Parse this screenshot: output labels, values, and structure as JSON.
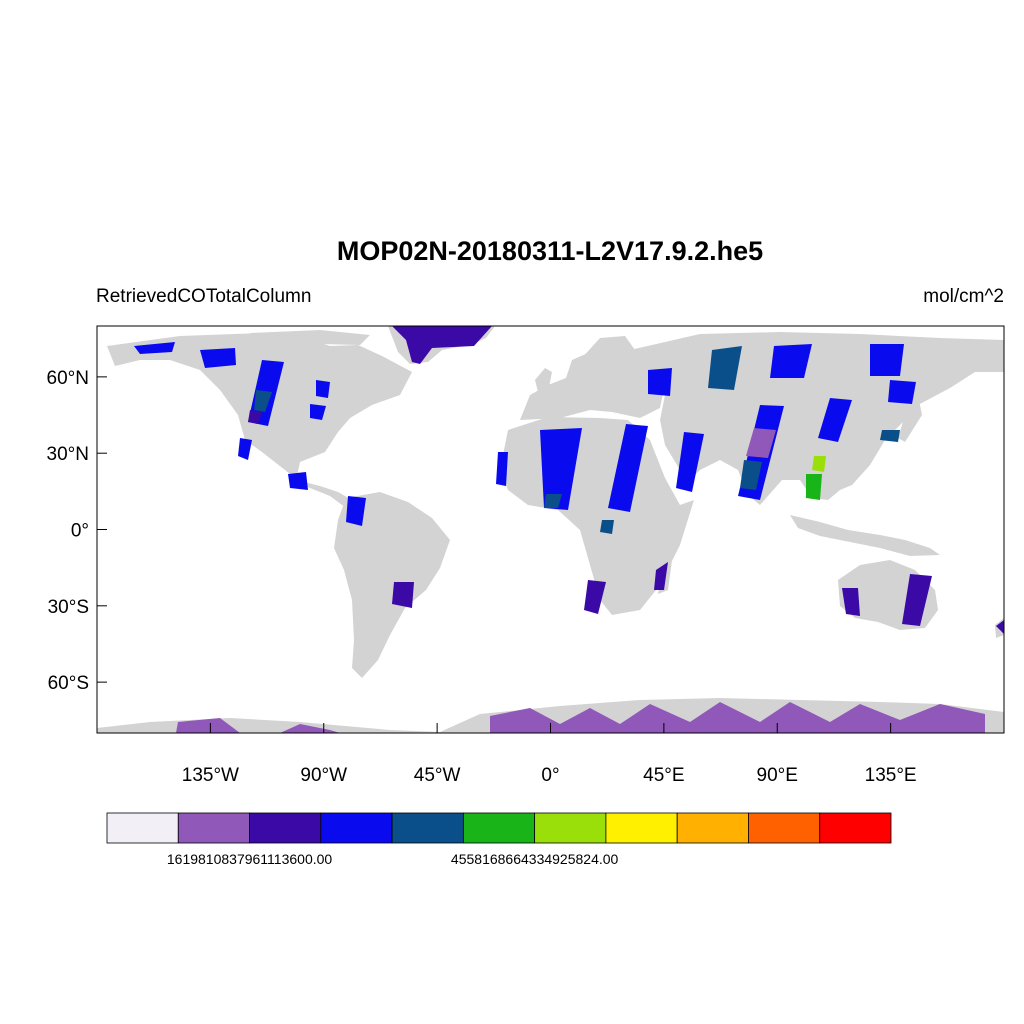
{
  "title": "MOP02N-20180311-L2V17.9.2.he5",
  "left_string": "RetrievedCOTotalColumn",
  "right_string": "mol/cm^2",
  "map": {
    "projection": "cylindrical-equidistant",
    "lon_range": [
      -180,
      180
    ],
    "lat_range": [
      -80,
      80
    ],
    "land_color": "#d3d3d3",
    "ocean_color": "#ffffff",
    "lat_ticks": [
      {
        "value": 60,
        "label": "60°N"
      },
      {
        "value": 30,
        "label": "30°N"
      },
      {
        "value": 0,
        "label": "0°"
      },
      {
        "value": -30,
        "label": "30°S"
      },
      {
        "value": -60,
        "label": "60°S"
      }
    ],
    "lon_ticks": [
      {
        "value": -135,
        "label": "135°W"
      },
      {
        "value": -90,
        "label": "90°W"
      },
      {
        "value": -45,
        "label": "45°W"
      },
      {
        "value": 0,
        "label": "0°"
      },
      {
        "value": 45,
        "label": "45°E"
      },
      {
        "value": 90,
        "label": "90°E"
      },
      {
        "value": 135,
        "label": "135°E"
      }
    ]
  },
  "colorbar": {
    "colors": [
      "#f3eff7",
      "#9058b8",
      "#3b0aa6",
      "#0a0aef",
      "#0a4f8a",
      "#18b418",
      "#9bdf0a",
      "#fff000",
      "#ffb000",
      "#ff6000",
      "#ff0000"
    ],
    "labels": [
      {
        "after_box": 1,
        "text": "1619810837961113600.00"
      },
      {
        "after_box": 5,
        "text": "4558168664334925824.00"
      }
    ]
  }
}
